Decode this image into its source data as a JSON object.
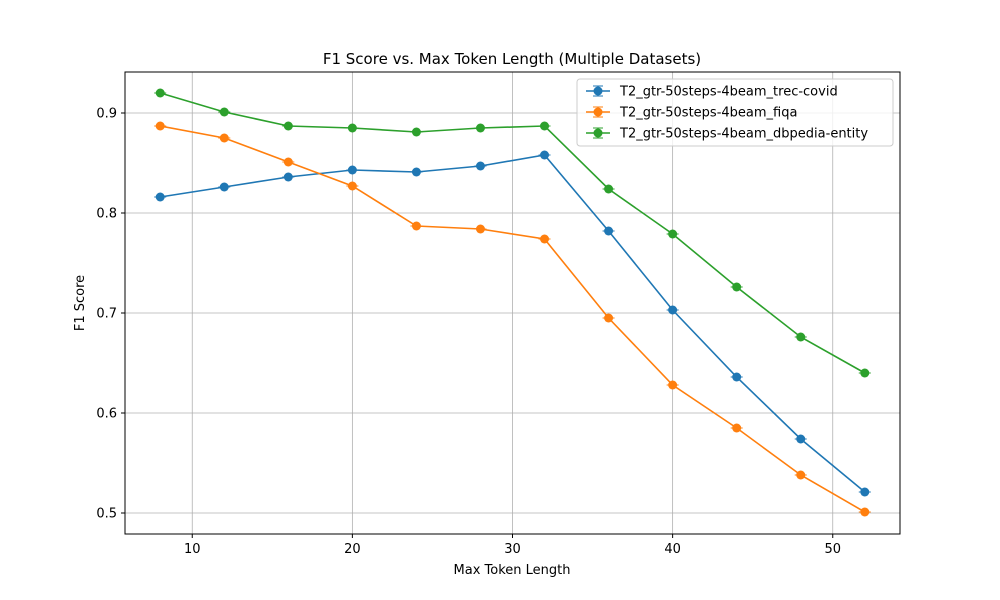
{
  "chart_data": {
    "type": "line",
    "title": "F1 Score vs. Max Token Length (Multiple Datasets)",
    "xlabel": "Max Token Length",
    "ylabel": "F1 Score",
    "xlim": [
      5.8,
      54.2
    ],
    "ylim": [
      0.479,
      0.941
    ],
    "x_ticks": [
      10,
      20,
      30,
      40,
      50
    ],
    "y_ticks": [
      0.5,
      0.6,
      0.7,
      0.8,
      0.9
    ],
    "x_tick_labels": [
      "10",
      "20",
      "30",
      "40",
      "50"
    ],
    "y_tick_labels": [
      "0.5",
      "0.6",
      "0.7",
      "0.8",
      "0.9"
    ],
    "grid": true,
    "legend_position": "upper right",
    "x": [
      8,
      12,
      16,
      20,
      24,
      28,
      32,
      36,
      40,
      44,
      48,
      52
    ],
    "series": [
      {
        "name": "T2_gtr-50steps-4beam_trec-covid",
        "color": "#1f77b4",
        "values": [
          0.816,
          0.826,
          0.836,
          0.843,
          0.841,
          0.847,
          0.858,
          0.782,
          0.703,
          0.636,
          0.574,
          0.521
        ]
      },
      {
        "name": "T2_gtr-50steps-4beam_fiqa",
        "color": "#ff7f0e",
        "values": [
          0.887,
          0.875,
          0.851,
          0.827,
          0.787,
          0.784,
          0.774,
          0.695,
          0.628,
          0.585,
          0.538,
          0.501
        ]
      },
      {
        "name": "T2_gtr-50steps-4beam_dbpedia-entity",
        "color": "#2ca02c",
        "values": [
          0.92,
          0.901,
          0.887,
          0.885,
          0.881,
          0.885,
          0.887,
          0.824,
          0.779,
          0.726,
          0.676,
          0.64
        ]
      }
    ]
  }
}
